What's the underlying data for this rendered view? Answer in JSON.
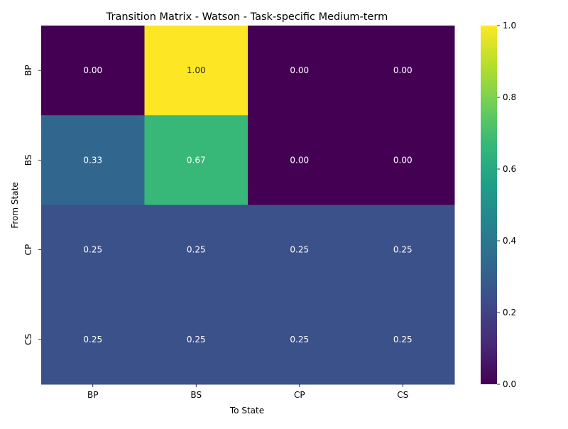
{
  "chart_data": {
    "type": "heatmap",
    "title": "Transition Matrix - Watson - Task-specific Medium-term",
    "xlabel": "To State",
    "ylabel": "From State",
    "x_categories": [
      "BP",
      "BS",
      "CP",
      "CS"
    ],
    "y_categories": [
      "BP",
      "BS",
      "CP",
      "CS"
    ],
    "values": [
      [
        0.0,
        1.0,
        0.0,
        0.0
      ],
      [
        0.33,
        0.67,
        0.0,
        0.0
      ],
      [
        0.25,
        0.25,
        0.25,
        0.25
      ],
      [
        0.25,
        0.25,
        0.25,
        0.25
      ]
    ],
    "annotation_format": "0.00",
    "colormap": "viridis",
    "vmin": 0.0,
    "vmax": 1.0,
    "colorbar_ticks": [
      "0.0",
      "0.2",
      "0.4",
      "0.6",
      "0.8",
      "1.0"
    ],
    "colorbar_tick_values": [
      0.0,
      0.2,
      0.4,
      0.6,
      0.8,
      1.0
    ],
    "annotation_colors": {
      "light": "#ffffff",
      "dark": "#262626"
    },
    "colors": {
      "viridis": [
        "#440154",
        "#482878",
        "#3e4989",
        "#31688e",
        "#26828e",
        "#1f9e89",
        "#35b779",
        "#6ece58",
        "#b5de2b",
        "#fde725"
      ]
    }
  }
}
